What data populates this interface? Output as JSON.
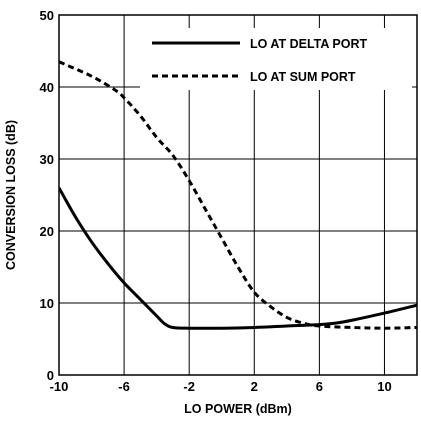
{
  "chart_data": {
    "type": "line",
    "xlabel": "LO POWER (dBm)",
    "ylabel": "CONVERSION LOSS (dB)",
    "xlim": [
      -10,
      12
    ],
    "ylim": [
      0,
      50
    ],
    "x_ticks": [
      -10,
      -6,
      -2,
      2,
      6,
      10
    ],
    "x_tick_labels": [
      "-10",
      "-6",
      "-2",
      "2",
      "6",
      "10"
    ],
    "y_ticks": [
      0,
      10,
      20,
      30,
      40,
      50
    ],
    "y_tick_labels": [
      "0",
      "10",
      "20",
      "30",
      "40",
      "50"
    ],
    "grid": true,
    "legend_position": "top-right",
    "series": [
      {
        "name": "LO AT DELTA PORT",
        "style": "solid",
        "color": "#000000",
        "x": [
          -10,
          -9,
          -8,
          -7,
          -6,
          -5,
          -4,
          -3.5,
          -3,
          -2,
          0,
          2,
          4,
          6,
          7,
          8,
          10,
          12
        ],
        "y": [
          26,
          22,
          18.5,
          15.5,
          12.8,
          10.5,
          8.2,
          7.1,
          6.6,
          6.5,
          6.5,
          6.6,
          6.8,
          7.0,
          7.2,
          7.6,
          8.6,
          9.7
        ]
      },
      {
        "name": "LO AT SUM PORT",
        "style": "dashed",
        "color": "#000000",
        "x": [
          -10,
          -8,
          -6.5,
          -6,
          -5,
          -4,
          -3,
          -2,
          -1,
          0,
          1,
          2,
          3,
          4,
          5,
          6,
          8,
          10,
          12
        ],
        "y": [
          43.5,
          41.5,
          39.5,
          38.5,
          36,
          33,
          30.5,
          27,
          23,
          19,
          15,
          11.5,
          9.5,
          8,
          7.2,
          6.8,
          6.6,
          6.5,
          6.6
        ]
      }
    ]
  }
}
